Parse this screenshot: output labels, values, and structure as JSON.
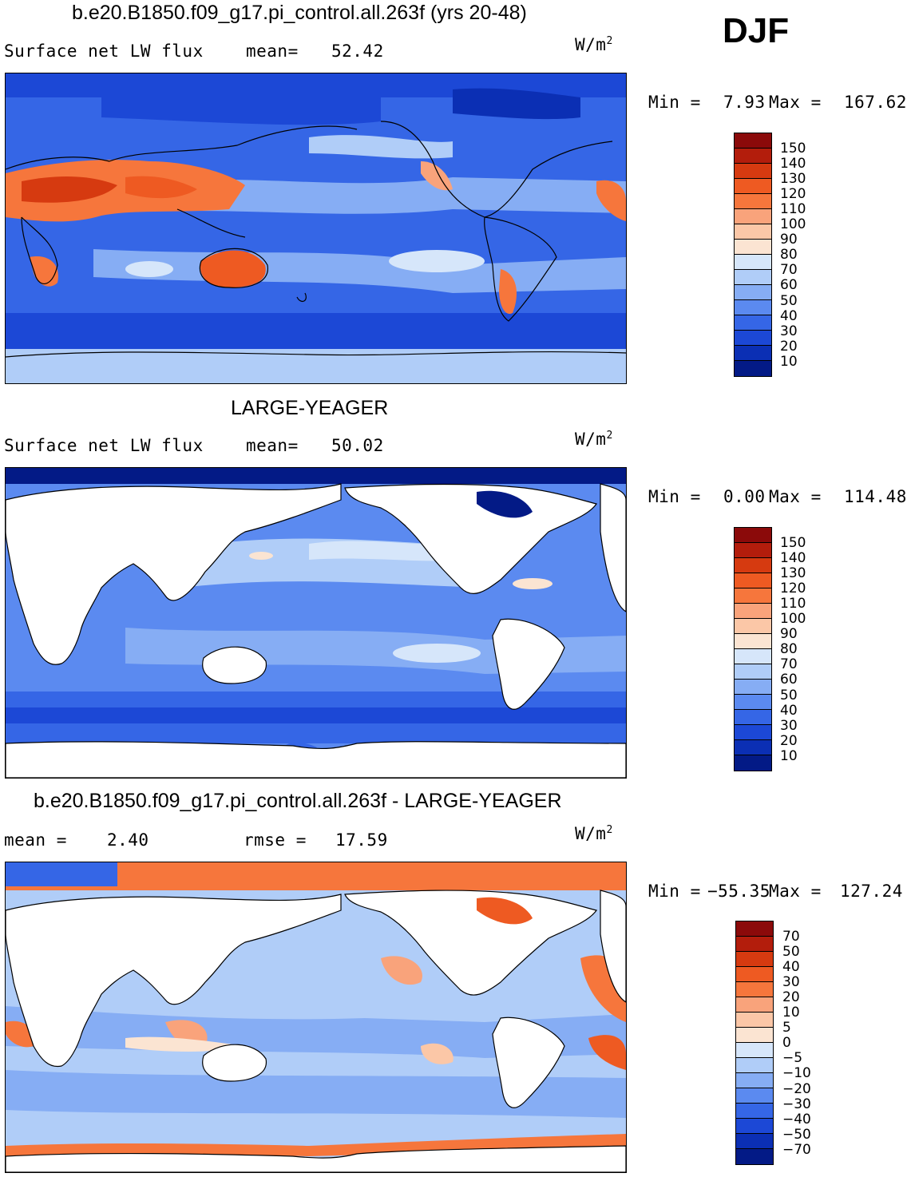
{
  "season": "DJF",
  "units_text": "W/m",
  "units_sup": "2",
  "panels": [
    {
      "title": "b.e20.B1850.f09_g17.pi_control.all.263f (yrs 20-48)",
      "variable": "Surface net LW flux",
      "stat_label": "mean=",
      "stat_value": "52.42",
      "min_label": "Min =",
      "min_value": "7.93",
      "max_label": "Max =",
      "max_value": "167.62",
      "colorbar_labels": [
        "150",
        "140",
        "130",
        "120",
        "110",
        "100",
        "90",
        "80",
        "70",
        "60",
        "50",
        "40",
        "30",
        "20",
        "10"
      ],
      "colorbar_colors": [
        "#8b0a0a",
        "#b31d0c",
        "#d63a10",
        "#ee5a22",
        "#f6763c",
        "#f9a37b",
        "#fbc7a7",
        "#fbe4d2",
        "#d6e6fa",
        "#b0cdf8",
        "#86adf4",
        "#5b8af0",
        "#3566e6",
        "#1c48d6",
        "#0b2fb4",
        "#031a86"
      ]
    },
    {
      "title": "LARGE-YEAGER",
      "variable": "Surface net LW flux",
      "stat_label": "mean=",
      "stat_value": "50.02",
      "min_label": "Min =",
      "min_value": "0.00",
      "max_label": "Max =",
      "max_value": "114.48",
      "colorbar_labels": [
        "150",
        "140",
        "130",
        "120",
        "110",
        "100",
        "90",
        "80",
        "70",
        "60",
        "50",
        "40",
        "30",
        "20",
        "10"
      ],
      "colorbar_colors": [
        "#8b0a0a",
        "#b31d0c",
        "#d63a10",
        "#ee5a22",
        "#f6763c",
        "#f9a37b",
        "#fbc7a7",
        "#fbe4d2",
        "#d6e6fa",
        "#b0cdf8",
        "#86adf4",
        "#5b8af0",
        "#3566e6",
        "#1c48d6",
        "#0b2fb4",
        "#031a86"
      ]
    },
    {
      "title": "b.e20.B1850.f09_g17.pi_control.all.263f - LARGE-YEAGER",
      "stat_label": "mean =",
      "stat_value": "2.40",
      "stat2_label": "rmse =",
      "stat2_value": "17.59",
      "min_label": "Min =",
      "min_value": "−55.35",
      "max_label": "Max =",
      "max_value": "127.24",
      "colorbar_labels": [
        "70",
        "50",
        "40",
        "30",
        "20",
        "10",
        "5",
        "0",
        "−5",
        "−10",
        "−20",
        "−30",
        "−40",
        "−50",
        "−70"
      ],
      "colorbar_colors": [
        "#8b0a0a",
        "#b31d0c",
        "#d63a10",
        "#ee5a22",
        "#f6763c",
        "#f9a37b",
        "#fbc7a7",
        "#fbe4d2",
        "#d6e6fa",
        "#b0cdf8",
        "#86adf4",
        "#5b8af0",
        "#3566e6",
        "#1c48d6",
        "#0b2fb4",
        "#031a86"
      ]
    }
  ]
}
